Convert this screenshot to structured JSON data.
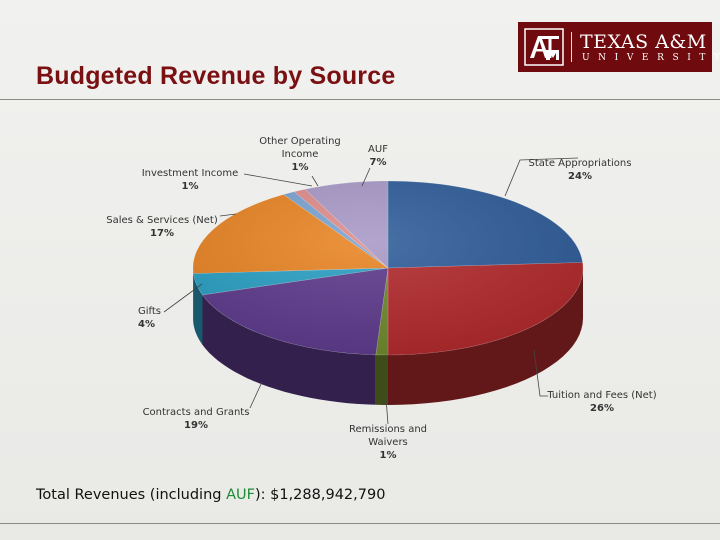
{
  "page": {
    "title": "Budgeted Revenue by Source",
    "logo": {
      "name": "TEXAS A&M",
      "sub": "UNIVERSITY"
    },
    "total": {
      "prefix": "Total Revenues (including ",
      "accent": "AUF",
      "suffix": "): $1,288,942,790",
      "accent_color": "#1f8c36"
    }
  },
  "chart_data": {
    "type": "pie",
    "style": "3d",
    "title": "Budgeted Revenue by Source",
    "slices": [
      {
        "name": "State Appropriations",
        "value": 24,
        "label": "24%",
        "color": "#2f5d9a"
      },
      {
        "name": "Tuition and Fees (Net)",
        "value": 26,
        "label": "26%",
        "color": "#b2292c"
      },
      {
        "name": "Remissions and Waivers",
        "value": 1,
        "label": "1%",
        "color": "#6f8a2c"
      },
      {
        "name": "Contracts and Grants",
        "value": 19,
        "label": "19%",
        "color": "#5d3a8c"
      },
      {
        "name": "Gifts",
        "value": 4,
        "label": "4%",
        "color": "#2aa0c4"
      },
      {
        "name": "Sales & Services (Net)",
        "value": 17,
        "label": "17%",
        "color": "#e98424"
      },
      {
        "name": "Investment Income",
        "value": 1,
        "label": "1%",
        "color": "#7aa3d1"
      },
      {
        "name": "Other Operating Income",
        "value": 1,
        "label": "1%",
        "color": "#de8c8a"
      },
      {
        "name": "AUF",
        "value": 7,
        "label": "7%",
        "color": "#a899c7"
      }
    ]
  }
}
